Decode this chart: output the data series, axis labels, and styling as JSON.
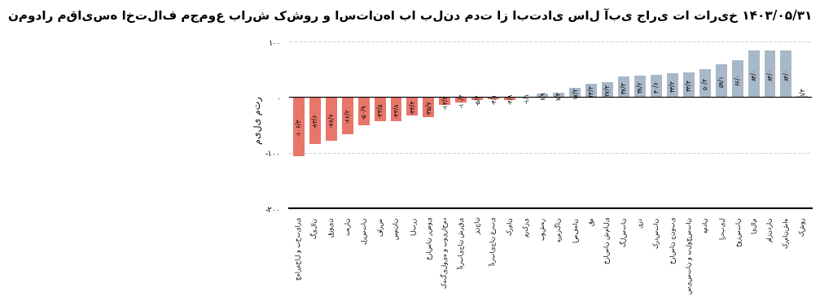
{
  "title": "نمودار مقایسه اختلاف مجموع بارش کشور و استان‌ها با بلند مدت از ابتدای سال آبی جاری تا تاریخ ۱۴۰۳/۰۵/۳۱",
  "ylabel": "میلی متر",
  "ylim": [
    -200,
    120
  ],
  "yticks": [
    -200,
    -100,
    0,
    100
  ],
  "ytick_labels": [
    "-۲۰۰",
    "-۱۰۰",
    "۰",
    "۱۰۰"
  ],
  "categories": [
    "چهارمحال و بختیاری",
    "گیلان",
    "قزوین",
    "تهران",
    "لرستان",
    "فارس",
    "سمنان",
    "البرز",
    "خراسان رضوی",
    "کهگیلویه و بویراحمد",
    "آذربایجان شرقی",
    "زنجان",
    "آذربایجان غربی",
    "کرمان",
    "مرکزی",
    "بوشهر",
    "هرمزگان",
    "اصفهان",
    "قم",
    "خراسان شمالی",
    "گلستان",
    "یزد",
    "کردستان",
    "خراسان جنوبی",
    "سیستان و بلوچستان",
    "همدان",
    "اردبیل",
    "خوزستان",
    "ایلام",
    "مازندران",
    "کرمانشاه",
    "کشور"
  ],
  "values": [
    -106.3,
    -83.6,
    -78.7,
    -66.2,
    -50.9,
    -43.5,
    -43.8,
    -33.4,
    -35.7,
    -14.2,
    -10.3,
    -5.4,
    -4.1,
    -4.8,
    -1.1,
    6.9,
    7.3,
    17.2,
    23.3,
    27.3,
    37.3,
    38.2,
    40.6,
    43.2,
    44.4,
    50.4,
    59.1,
    66.0,
    84.0,
    84.0,
    84.0,
    1.3
  ],
  "bar_labels": [
    "-۱۰۶/۳",
    "-۸۳/۶",
    "-۷۸/۷",
    "-۶۶/۲",
    "-۵۰/۹",
    "-۴۳/۵",
    "-۴۳/۸",
    "-۳۳/۴",
    "-۳۵/۷",
    "-۱۴/۲",
    "-۱۰/۳",
    "-۵/۴",
    "-۴/۱",
    "-۴/۸",
    "-۱/۱",
    "۶/۹",
    "۷/۳",
    "۱۷/۲",
    "۲۳/۳",
    "۲۷/۳",
    "۳۷/۳",
    "۳۸/۲",
    "۴۰/۶",
    "۴۳/۲",
    "۴۴/۴",
    "۵۰/۴",
    "۵۹/۱",
    "۶۶/۰",
    "۸۴/۰",
    "۸۴/۰",
    "۸۴/۰",
    "۱/۳"
  ],
  "bar_color_negative": "#E8766A",
  "bar_color_positive": "#A8B8C8",
  "background_color": "#FFFFFF",
  "grid_color": "#CCCCCC",
  "title_fontsize": 11,
  "ylabel_fontsize": 8,
  "tick_fontsize": 7,
  "bar_label_fontsize": 5.5
}
